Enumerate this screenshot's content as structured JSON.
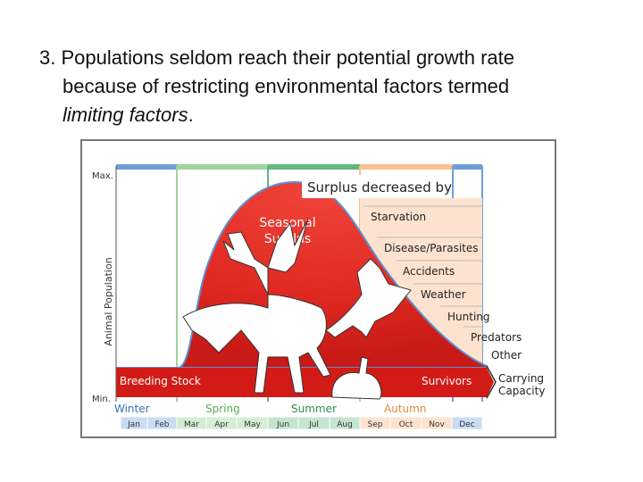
{
  "slide": {
    "number": "3.",
    "line1": "Populations seldom reach their potential growth rate",
    "line2": "because of restricting environmental factors termed",
    "line3_italic": "limiting factors",
    "line3_end": "."
  },
  "diagram": {
    "max_label": "Max.",
    "min_label": "Min.",
    "y_axis_label": "Animal Population",
    "surplus_header": "Surplus decreased by",
    "seasonal_surplus": [
      "Seasonal",
      "Surplus"
    ],
    "factors": [
      "Starvation",
      "Disease/Parasites",
      "Accidents",
      "Weather",
      "Hunting",
      "Predators",
      "Other"
    ],
    "breeding_stock": "Breeding Stock",
    "survivors": "Survivors",
    "carrying_capacity": [
      "Carrying",
      "Capacity"
    ],
    "seasons": [
      "Winter",
      "Spring",
      "Summer",
      "Autumn"
    ],
    "months": [
      "Jan",
      "Feb",
      "Mar",
      "Apr",
      "May",
      "Jun",
      "Jul",
      "Aug",
      "Sep",
      "Oct",
      "Nov",
      "Dec"
    ]
  }
}
